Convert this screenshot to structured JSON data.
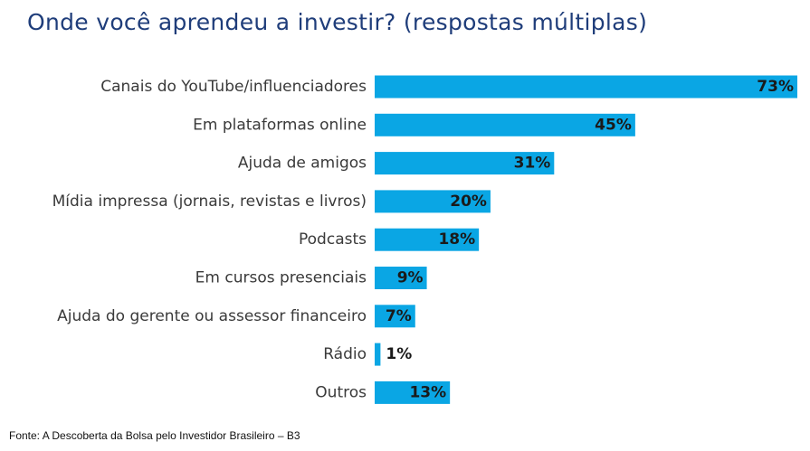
{
  "title": "Onde você aprendeu a investir? (respostas múltiplas)",
  "source": "Fonte: A Descoberta da Bolsa pelo Investidor Brasileiro – B3",
  "colors": {
    "bar": "#0aa6e4",
    "title": "#1f3d7a"
  },
  "chart_data": {
    "type": "bar",
    "orientation": "horizontal",
    "title": "Onde você aprendeu a investir? (respostas múltiplas)",
    "categories": [
      "Canais do YouTube/influenciadores",
      "Em plataformas online",
      "Ajuda de amigos",
      "Mídia impressa (jornais, revistas e livros)",
      "Podcasts",
      "Em cursos presenciais",
      "Ajuda do gerente ou assessor financeiro",
      "Rádio",
      "Outros"
    ],
    "values": [
      73,
      45,
      31,
      20,
      18,
      9,
      7,
      1,
      13
    ],
    "value_labels": [
      "73%",
      "45%",
      "31%",
      "20%",
      "18%",
      "9%",
      "7%",
      "1%",
      "13%"
    ],
    "unit": "%",
    "xlim": [
      0,
      73
    ],
    "grid": false,
    "legend": "none"
  }
}
